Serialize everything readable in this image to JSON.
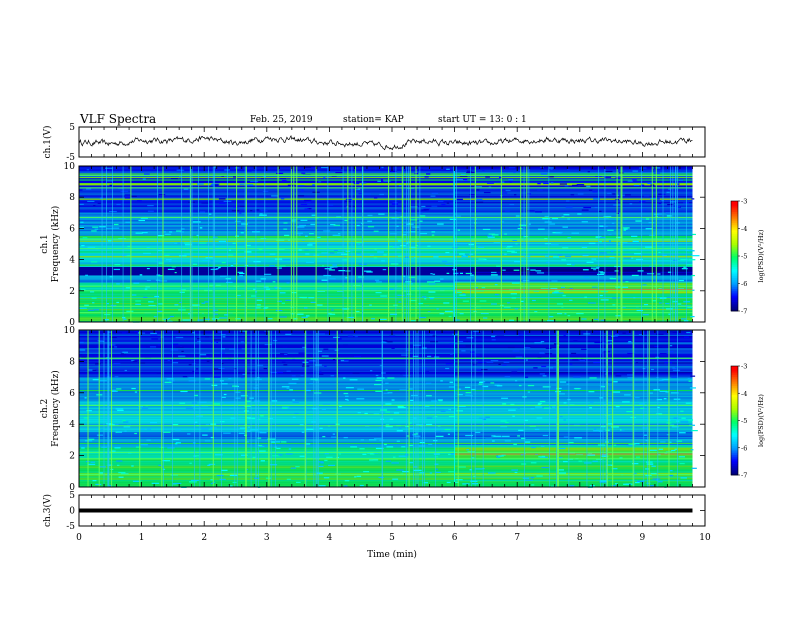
{
  "header": {
    "title": "VLF Spectra",
    "date": "Feb. 25, 2019",
    "station": "station= KAP",
    "start": "start  UT =   13: 0  : 1"
  },
  "colors": {
    "colormap": [
      "#00007a",
      "#0000ff",
      "#00a0ff",
      "#00ffff",
      "#00ff66",
      "#aaff00",
      "#ffff00",
      "#ff8000",
      "#ff0000",
      "#ffffff"
    ],
    "spectrogram_background": "#03062e",
    "trace": "#000000"
  },
  "chart_data": [
    {
      "type": "line",
      "name": "ch1-waveform",
      "ylabel": "ch.1(V)",
      "xlim": [
        0,
        10
      ],
      "ylim": [
        -5,
        5
      ],
      "yticks": [
        "5",
        "-5"
      ],
      "description_values": {
        "x": [
          0,
          0.5,
          1,
          1.5,
          2,
          2.5,
          3,
          3.5,
          4,
          4.5,
          5,
          5.5,
          6,
          6.5,
          7,
          7.5,
          8,
          8.5,
          9,
          9.5,
          9.8
        ],
        "y": [
          0,
          -0.6,
          0.6,
          0.4,
          1.2,
          -0.4,
          1.4,
          0.6,
          -0.3,
          -0.6,
          -1.4,
          0.4,
          -0.5,
          -0.6,
          0.5,
          0.8,
          0.4,
          0.5,
          -0.5,
          0.2,
          0.8
        ]
      }
    },
    {
      "type": "heatmap",
      "name": "ch1-spectrogram",
      "ylabel": "ch.1\nFrequency (kHz)",
      "ylabel_line1": "ch.1",
      "ylabel_line2": "Frequency (kHz)",
      "xlim": [
        0,
        10
      ],
      "ylim": [
        0,
        10
      ],
      "yticks": [
        "0",
        "2",
        "4",
        "6",
        "8",
        "10"
      ],
      "data_end_x": 9.8,
      "colorbar": {
        "label": "log(PSD)(V²/Hz)",
        "range": [
          -7,
          -3
        ],
        "ticks": [
          "-3",
          "-4",
          "-5",
          "-6",
          "-7"
        ]
      },
      "regime_change_x": 6.0
    },
    {
      "type": "heatmap",
      "name": "ch2-spectrogram",
      "ylabel_line1": "ch.2",
      "ylabel_line2": "Frequency (kHz)",
      "xlim": [
        0,
        10
      ],
      "ylim": [
        0,
        10
      ],
      "yticks": [
        "0",
        "2",
        "4",
        "6",
        "8",
        "10"
      ],
      "data_end_x": 9.8,
      "colorbar": {
        "label": "log(PSD)(V²/Hz)",
        "range": [
          -7,
          -3
        ],
        "ticks": [
          "-3",
          "-4",
          "-5",
          "-6",
          "-7"
        ]
      },
      "regime_change_x": 6.0
    },
    {
      "type": "line",
      "name": "ch3-waveform",
      "ylabel": "ch.3(V)",
      "xlim": [
        0,
        10
      ],
      "ylim": [
        -5,
        5
      ],
      "yticks": [
        "5",
        "0",
        "-5"
      ],
      "x": [
        0,
        9.8
      ],
      "y": [
        0,
        0
      ]
    }
  ],
  "xaxis": {
    "label": "Time (min)",
    "ticks": [
      "0",
      "1",
      "2",
      "3",
      "4",
      "5",
      "6",
      "7",
      "8",
      "9",
      "10"
    ]
  }
}
